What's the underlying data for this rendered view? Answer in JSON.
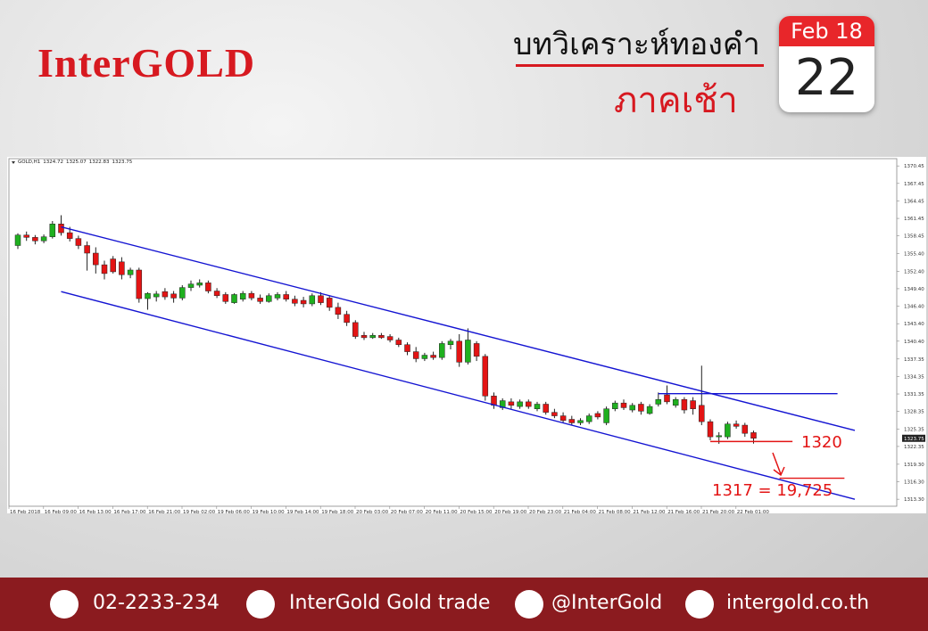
{
  "header": {
    "logo": "InterGOLD",
    "title": "บทวิเคราะห์ทองคำ",
    "subtitle": "ภาคเช้า"
  },
  "calendar": {
    "month": "Feb 18",
    "day": "22"
  },
  "chart_data": {
    "type": "candlestick",
    "symbol": "GOLD,H1",
    "up_color": "#1fb01f",
    "down_color": "#e31414",
    "categories": [
      "16 Feb 2018",
      null,
      null,
      null,
      "16 Feb 09:00",
      null,
      null,
      null,
      "16 Feb 13:00",
      null,
      null,
      null,
      "16 Feb 17:00",
      null,
      null,
      null,
      "16 Feb 21:00",
      null,
      null,
      null,
      "19 Feb 02:00",
      null,
      null,
      null,
      "19 Feb 06:00",
      null,
      null,
      null,
      "19 Feb 10:00",
      null,
      null,
      null,
      "19 Feb 14:00",
      null,
      null,
      null,
      "19 Feb 18:00",
      null,
      null,
      null,
      "20 Feb 03:00",
      null,
      null,
      null,
      "20 Feb 07:00",
      null,
      null,
      null,
      "20 Feb 11:00",
      null,
      null,
      null,
      "20 Feb 15:00",
      null,
      null,
      null,
      "20 Feb 19:00",
      null,
      null,
      null,
      "20 Feb 23:00",
      null,
      null,
      null,
      "21 Feb 04:00",
      null,
      null,
      null,
      "21 Feb 08:00",
      null,
      null,
      null,
      "21 Feb 12:00",
      null,
      null,
      null,
      "21 Feb 16:00",
      null,
      null,
      null,
      "21 Feb 20:00",
      null,
      null,
      null,
      "22 Feb 01:00",
      null
    ],
    "open": [
      1356.8,
      1358.6,
      1358.2,
      1357.6,
      1358.3,
      1360.5,
      1359.0,
      1358.0,
      1356.8,
      1355.5,
      1353.5,
      1354.5,
      1354.0,
      1351.8,
      1352.6,
      1347.7,
      1348.0,
      1348.9,
      1348.5,
      1347.8,
      1349.6,
      1350.0,
      1350.4,
      1349.0,
      1348.4,
      1347.0,
      1347.6,
      1348.6,
      1347.8,
      1347.2,
      1347.8,
      1348.4,
      1347.6,
      1347.4,
      1346.8,
      1348.2,
      1347.8,
      1346.2,
      1345.0,
      1343.6,
      1341.4,
      1341.0,
      1341.4,
      1341.2,
      1340.6,
      1339.8,
      1338.6,
      1337.4,
      1338.0,
      1337.6,
      1339.8,
      1340.4,
      1336.8,
      1340.0,
      1337.8,
      1331.0,
      1329.0,
      1330.0,
      1329.2,
      1330.0,
      1328.8,
      1329.6,
      1328.2,
      1327.6,
      1327.0,
      1326.4,
      1326.6,
      1328.0,
      1326.4,
      1328.8,
      1329.8,
      1328.6,
      1329.6,
      1328.0,
      1329.6,
      1331.2,
      1329.4,
      1330.4,
      1330.2,
      1329.4,
      1326.6,
      1324.0,
      1324.0,
      1326.2,
      1326.0,
      1324.72
    ],
    "high": [
      1358.9,
      1359.2,
      1358.6,
      1358.7,
      1361.0,
      1362.0,
      1360.0,
      1358.5,
      1357.5,
      1356.5,
      1354.2,
      1355.0,
      1354.8,
      1353.0,
      1353.0,
      1348.8,
      1349.0,
      1349.5,
      1349.0,
      1350.0,
      1350.8,
      1351.0,
      1350.8,
      1349.5,
      1348.8,
      1348.6,
      1349.0,
      1349.0,
      1348.4,
      1348.6,
      1348.8,
      1349.0,
      1348.2,
      1348.0,
      1348.6,
      1348.8,
      1348.2,
      1347.0,
      1345.6,
      1344.0,
      1342.0,
      1341.8,
      1341.8,
      1341.6,
      1341.0,
      1340.2,
      1339.4,
      1338.4,
      1338.6,
      1340.4,
      1340.8,
      1341.6,
      1342.6,
      1340.4,
      1338.2,
      1331.6,
      1330.6,
      1330.6,
      1330.4,
      1330.4,
      1330.0,
      1330.0,
      1328.8,
      1328.2,
      1327.6,
      1327.2,
      1328.0,
      1328.4,
      1329.2,
      1330.2,
      1330.4,
      1329.8,
      1330.0,
      1329.6,
      1331.6,
      1332.8,
      1330.8,
      1330.8,
      1330.8,
      1336.2,
      1327.0,
      1324.8,
      1326.6,
      1326.8,
      1326.4,
      1325.07
    ],
    "low": [
      1356.2,
      1357.6,
      1357.0,
      1357.2,
      1358.0,
      1358.5,
      1357.5,
      1356.2,
      1352.5,
      1352.0,
      1351.0,
      1352.0,
      1351.0,
      1351.2,
      1347.0,
      1345.8,
      1347.2,
      1347.5,
      1347.0,
      1347.4,
      1349.0,
      1349.6,
      1348.6,
      1347.8,
      1346.8,
      1346.8,
      1347.2,
      1347.4,
      1346.8,
      1347.0,
      1347.4,
      1347.2,
      1346.4,
      1346.2,
      1346.4,
      1346.6,
      1345.6,
      1344.2,
      1343.0,
      1340.8,
      1340.6,
      1340.8,
      1340.8,
      1340.2,
      1339.4,
      1338.0,
      1336.8,
      1337.0,
      1337.2,
      1337.2,
      1339.0,
      1336.0,
      1336.4,
      1337.0,
      1330.2,
      1328.8,
      1328.6,
      1328.8,
      1328.8,
      1328.8,
      1328.4,
      1327.8,
      1327.2,
      1326.4,
      1326.0,
      1326.0,
      1326.2,
      1327.0,
      1326.0,
      1328.4,
      1328.6,
      1328.2,
      1327.8,
      1327.8,
      1329.2,
      1329.6,
      1329.0,
      1328.0,
      1327.8,
      1326.0,
      1323.4,
      1322.8,
      1323.6,
      1325.4,
      1324.0,
      1322.83
    ],
    "close": [
      1358.6,
      1358.2,
      1357.6,
      1358.3,
      1360.5,
      1359.0,
      1358.0,
      1356.8,
      1355.5,
      1353.5,
      1352.0,
      1352.3,
      1351.8,
      1352.6,
      1347.7,
      1348.6,
      1348.5,
      1348.0,
      1347.8,
      1349.6,
      1350.2,
      1350.4,
      1349.0,
      1348.2,
      1347.2,
      1348.4,
      1348.6,
      1347.8,
      1347.2,
      1348.2,
      1348.4,
      1347.6,
      1346.9,
      1346.8,
      1348.2,
      1347.0,
      1346.2,
      1345.0,
      1343.6,
      1341.2,
      1341.0,
      1341.4,
      1341.0,
      1340.6,
      1339.8,
      1338.6,
      1337.4,
      1338.0,
      1337.6,
      1340.0,
      1340.4,
      1336.8,
      1340.6,
      1337.8,
      1331.0,
      1329.4,
      1330.2,
      1329.4,
      1330.0,
      1329.2,
      1329.6,
      1328.2,
      1327.6,
      1326.8,
      1326.4,
      1326.8,
      1327.6,
      1327.4,
      1328.8,
      1329.8,
      1329.0,
      1329.4,
      1328.4,
      1329.2,
      1330.4,
      1330.0,
      1330.4,
      1328.6,
      1328.8,
      1326.6,
      1324.0,
      1324.2,
      1326.2,
      1325.8,
      1324.6,
      1323.75
    ],
    "ylim": [
      1312.1,
      1371.7
    ],
    "yticks": [
      1370.45,
      1367.45,
      1364.45,
      1361.45,
      1358.45,
      {
        "value": 1355.4,
        "label": "1355.40"
      },
      {
        "value": 1352.4,
        "label": "1352.40"
      },
      {
        "value": 1349.4,
        "label": "1349.40"
      },
      {
        "value": 1346.4,
        "label": "1346.40"
      },
      {
        "value": 1343.4,
        "label": "1343.40"
      },
      {
        "value": 1340.4,
        "label": "1340.40"
      },
      1337.35,
      1334.35,
      1331.35,
      1328.35,
      1325.35,
      1322.35,
      {
        "value": 1319.3,
        "label": "1319.30"
      },
      {
        "value": 1316.3,
        "label": "1316.30"
      },
      {
        "value": 1313.3,
        "label": "1313.30"
      }
    ],
    "trendlines": [
      {
        "color": "#1414d2",
        "points": [
          [
            5,
            1360.0
          ],
          [
            96.7,
            1325.1
          ]
        ]
      },
      {
        "color": "#1414d2",
        "points": [
          [
            5,
            1348.9
          ],
          [
            96.7,
            1313.3
          ]
        ]
      },
      {
        "color": "#1414d2",
        "points": [
          [
            74,
            1331.4
          ],
          [
            94.7,
            1331.4
          ]
        ]
      },
      {
        "color": "#e31414",
        "points": [
          [
            80,
            1323.2
          ],
          [
            89.5,
            1323.2
          ]
        ]
      },
      {
        "color": "#e31414",
        "points": [
          [
            88,
            1316.9
          ],
          [
            95.5,
            1316.9
          ]
        ]
      }
    ],
    "annotations": [
      "1320",
      "1317 = 19,725"
    ]
  },
  "footer": {
    "phone": "02-2233-234",
    "facebook": "InterGold Gold trade",
    "line": "@InterGold",
    "website": "intergold.co.th"
  }
}
